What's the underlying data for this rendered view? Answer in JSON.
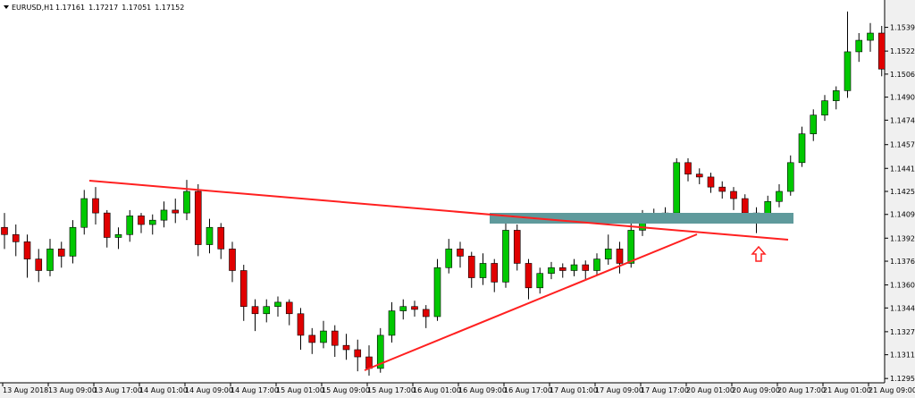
{
  "chart_data": {
    "type": "candlestick",
    "symbol": "EURUSD,H1",
    "quote": [
      1.17161,
      1.17217,
      1.17051,
      1.17152
    ],
    "up_color": "#00c800",
    "down_color": "#e00000",
    "ylim": [
      1.1292,
      1.1558
    ],
    "yticks": [
      {
        "value": 1.1539,
        "label": "1.15390"
      },
      {
        "value": 1.15225,
        "label": "1.15225"
      },
      {
        "value": 1.15065,
        "label": "1.15065"
      },
      {
        "value": 1.14905,
        "label": "1.14905"
      },
      {
        "value": 1.14745,
        "label": "1.14745"
      },
      {
        "value": 1.14575,
        "label": "1.14575"
      },
      {
        "value": 1.1441,
        "label": "1.14410"
      },
      {
        "value": 1.1425,
        "label": "1.14250"
      },
      {
        "value": 1.1409,
        "label": "1.14090"
      },
      {
        "value": 1.13925,
        "label": "1.13925"
      },
      {
        "value": 1.13765,
        "label": "1.13765"
      },
      {
        "value": 1.136,
        "label": "1.13600"
      },
      {
        "value": 1.1344,
        "label": "1.13440"
      },
      {
        "value": 1.13275,
        "label": "1.13275"
      },
      {
        "value": 1.13115,
        "label": "1.13115"
      },
      {
        "value": 1.1295,
        "label": "1.12950"
      }
    ],
    "x_labels": [
      "13 Aug 2018",
      "13 Aug 09:00",
      "13 Aug 17:00",
      "14 Aug 01:00",
      "14 Aug 09:00",
      "14 Aug 17:00",
      "15 Aug 01:00",
      "15 Aug 09:00",
      "15 Aug 17:00",
      "16 Aug 01:00",
      "16 Aug 09:00",
      "16 Aug 17:00",
      "17 Aug 01:00",
      "17 Aug 09:00",
      "17 Aug 17:00",
      "20 Aug 01:00",
      "20 Aug 09:00",
      "20 Aug 17:00",
      "21 Aug 01:00",
      "21 Aug 09:00"
    ],
    "candles": [
      [
        1.14,
        1.141,
        1.1385,
        1.1395
      ],
      [
        1.1395,
        1.1402,
        1.138,
        1.139
      ],
      [
        1.139,
        1.1395,
        1.1365,
        1.1378
      ],
      [
        1.1378,
        1.1385,
        1.1362,
        1.137
      ],
      [
        1.137,
        1.1392,
        1.1366,
        1.1385
      ],
      [
        1.1385,
        1.139,
        1.1372,
        1.138
      ],
      [
        1.138,
        1.1405,
        1.1375,
        1.14
      ],
      [
        1.14,
        1.1426,
        1.1395,
        1.142
      ],
      [
        1.142,
        1.1428,
        1.1402,
        1.141
      ],
      [
        1.141,
        1.1412,
        1.1386,
        1.1393
      ],
      [
        1.1393,
        1.14,
        1.1385,
        1.1395
      ],
      [
        1.1395,
        1.1412,
        1.139,
        1.1408
      ],
      [
        1.1408,
        1.141,
        1.1396,
        1.1402
      ],
      [
        1.1402,
        1.1409,
        1.1395,
        1.1405
      ],
      [
        1.1405,
        1.1418,
        1.14,
        1.1412
      ],
      [
        1.1412,
        1.142,
        1.1403,
        1.141
      ],
      [
        1.141,
        1.1433,
        1.1405,
        1.1425
      ],
      [
        1.1425,
        1.143,
        1.138,
        1.1388
      ],
      [
        1.1388,
        1.1406,
        1.1382,
        1.14
      ],
      [
        1.14,
        1.1403,
        1.1378,
        1.1385
      ],
      [
        1.1385,
        1.139,
        1.1362,
        1.137
      ],
      [
        1.137,
        1.1374,
        1.1335,
        1.1345
      ],
      [
        1.1345,
        1.135,
        1.1328,
        1.134
      ],
      [
        1.134,
        1.135,
        1.1334,
        1.1345
      ],
      [
        1.1345,
        1.1352,
        1.1338,
        1.1348
      ],
      [
        1.1348,
        1.135,
        1.1332,
        1.134
      ],
      [
        1.134,
        1.1344,
        1.1315,
        1.1325
      ],
      [
        1.1325,
        1.133,
        1.1312,
        1.132
      ],
      [
        1.132,
        1.1335,
        1.1316,
        1.1328
      ],
      [
        1.1328,
        1.1332,
        1.131,
        1.1318
      ],
      [
        1.1318,
        1.1326,
        1.1308,
        1.1315
      ],
      [
        1.1315,
        1.1322,
        1.13,
        1.131
      ],
      [
        1.131,
        1.1318,
        1.1297,
        1.1302
      ],
      [
        1.1302,
        1.133,
        1.1299,
        1.1325
      ],
      [
        1.1325,
        1.1348,
        1.132,
        1.1342
      ],
      [
        1.1342,
        1.135,
        1.1336,
        1.1345
      ],
      [
        1.1345,
        1.1349,
        1.1338,
        1.1343
      ],
      [
        1.1343,
        1.1346,
        1.133,
        1.1338
      ],
      [
        1.1338,
        1.1378,
        1.1335,
        1.1372
      ],
      [
        1.1372,
        1.1392,
        1.1368,
        1.1385
      ],
      [
        1.1385,
        1.139,
        1.1372,
        1.138
      ],
      [
        1.138,
        1.1383,
        1.1358,
        1.1365
      ],
      [
        1.1365,
        1.1382,
        1.136,
        1.1375
      ],
      [
        1.1375,
        1.1378,
        1.1355,
        1.1362
      ],
      [
        1.1362,
        1.1405,
        1.1358,
        1.1398
      ],
      [
        1.1398,
        1.1402,
        1.137,
        1.1375
      ],
      [
        1.1375,
        1.1378,
        1.135,
        1.1358
      ],
      [
        1.1358,
        1.1372,
        1.1354,
        1.1368
      ],
      [
        1.1368,
        1.1376,
        1.1364,
        1.1372
      ],
      [
        1.1372,
        1.1375,
        1.1365,
        1.137
      ],
      [
        1.137,
        1.1378,
        1.1366,
        1.1374
      ],
      [
        1.1374,
        1.1377,
        1.1364,
        1.137
      ],
      [
        1.137,
        1.1382,
        1.1367,
        1.1378
      ],
      [
        1.1378,
        1.1395,
        1.1374,
        1.1385
      ],
      [
        1.1385,
        1.139,
        1.1368,
        1.1375
      ],
      [
        1.1375,
        1.1403,
        1.1372,
        1.1398
      ],
      [
        1.1398,
        1.1412,
        1.1394,
        1.1407
      ],
      [
        1.1407,
        1.1413,
        1.1403,
        1.1409
      ],
      [
        1.1409,
        1.1414,
        1.1404,
        1.141
      ],
      [
        1.141,
        1.1448,
        1.1408,
        1.1445
      ],
      [
        1.1445,
        1.1448,
        1.1432,
        1.1437
      ],
      [
        1.1437,
        1.1441,
        1.143,
        1.1435
      ],
      [
        1.1435,
        1.1438,
        1.1424,
        1.1428
      ],
      [
        1.1428,
        1.1432,
        1.142,
        1.1425
      ],
      [
        1.1425,
        1.1428,
        1.1412,
        1.142
      ],
      [
        1.142,
        1.1423,
        1.1404,
        1.141
      ],
      [
        1.141,
        1.1414,
        1.1396,
        1.1408
      ],
      [
        1.1408,
        1.1422,
        1.1405,
        1.1418
      ],
      [
        1.1418,
        1.143,
        1.1414,
        1.1425
      ],
      [
        1.1425,
        1.145,
        1.1422,
        1.1445
      ],
      [
        1.1445,
        1.147,
        1.1442,
        1.1465
      ],
      [
        1.1465,
        1.1482,
        1.146,
        1.1478
      ],
      [
        1.1478,
        1.1492,
        1.1474,
        1.1488
      ],
      [
        1.1488,
        1.1498,
        1.1482,
        1.1495
      ],
      [
        1.1495,
        1.155,
        1.149,
        1.1522
      ],
      [
        1.1522,
        1.1535,
        1.1515,
        1.153
      ],
      [
        1.153,
        1.1542,
        1.1522,
        1.1535
      ],
      [
        1.1535,
        1.154,
        1.1505,
        1.151
      ]
    ]
  }
}
